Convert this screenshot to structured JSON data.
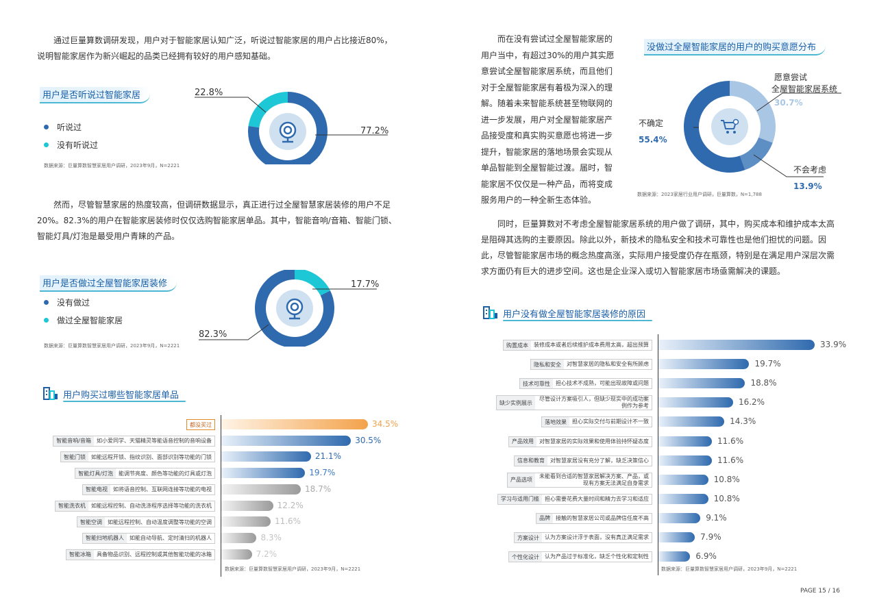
{
  "left": {
    "intro": [
      "通过巨量算数调研发现，用户对于智能家居认知广泛，听说过智能家居的用户占比接近80%，",
      "说明智能家居作为新兴崛起的品类已经拥有较好的用户感知基础。"
    ],
    "awareness": {
      "title": "用户是否听说过智能家居",
      "legend": [
        "听说过",
        "没有听说过"
      ],
      "values_text": [
        "77.2%",
        "22.8%"
      ],
      "source": "数据来源：巨量算数智慧家居用户调研，2023年9月，N=2221"
    },
    "para2": [
      "然而，尽管智慧家居的热度较高，但调研数据显示，真正进行过全屋智慧家居装修的用户不足",
      "20%。82.3%的用户在智能家居装修时仅仅选购智能家居单品。其中，智能音响/音箱、智能门锁、",
      "智能灯具/灯泡是最受用户青睐的产品。"
    ],
    "renovation": {
      "title": "用户是否做过全屋智能家居装修",
      "legend": [
        "没有做过",
        "做过全屋智能家居"
      ],
      "values_text": [
        "82.3%",
        "17.7%"
      ],
      "source": "数据来源：巨量算数智慧家居用户调研，2023年9月，N=2221"
    },
    "purchase": {
      "title": "用户购买过哪些智能家居单品",
      "source": "数据来源：巨量算数智慧家居用户调研，2023年9月，N=2221"
    }
  },
  "right": {
    "para1": [
      "而在没有尝试过全屋智能家居的",
      "用户当中，有超过30%的用户其实愿",
      "意尝试全屋智能家居系统，而且他们",
      "对于全屋智能家居有着极为深入的理",
      "解。随着未来智能系统甚至物联网的",
      "进一步发展，用户对全屋智能家居产",
      "品接受度和真实购买意愿也将进一步",
      "提升，智能家居的落地场景会实现从",
      "单品智能到全屋智能过渡。届时，智",
      "能家居不仅仅是一种产品，而将变成",
      "服务用户的一种全新生态体验。"
    ],
    "intent": {
      "title": "没做过全屋智能家居的用户的购买意愿分布",
      "labels": {
        "willing": [
          "愿意尝试",
          "全屋智能家居系统"
        ],
        "willing_val": "30.7%",
        "unsure": "不确定",
        "unsure_val": "55.4%",
        "no": "不会考虑",
        "no_val": "13.9%"
      },
      "source": "数据来源：2023家居行业用户调研，巨量算数，N=1,788"
    },
    "para2": [
      "同时，巨量算数对不考虑全屋智能家居系统的用户做了调研，其中，购买成本和维护成本太高",
      "是阻碍其选购的主要原因。除此以外，新技术的隐私安全和技术可靠性也是他们担忧的问题。因",
      "此，尽管智能家居市场的概念热度高涨，实际用户接受度仍存在瓶颈，特别是在满足用户深层次需",
      "求方面仍有巨大的进步空间。这也是企业深入或切入智能家居市场亟需解决的课题。"
    ],
    "reasons": {
      "title": "用户没有做全屋智能家居装修的原因",
      "source": "数据来源：巨量算数智慧家居用户调研，2023年9月，N=2221"
    }
  },
  "page_label": "PAGE 15 / 16",
  "chart_data": [
    {
      "type": "pie",
      "title": "用户是否听说过智能家居",
      "categories": [
        "听说过",
        "没有听说过"
      ],
      "values": [
        77.2,
        22.8
      ],
      "colors": [
        "#2f6aae",
        "#1ec7d6"
      ]
    },
    {
      "type": "pie",
      "title": "用户是否做过全屋智能家居装修",
      "categories": [
        "没有做过",
        "做过全屋智能家居"
      ],
      "values": [
        82.3,
        17.7
      ],
      "colors": [
        "#2f6aae",
        "#1ec7d6"
      ]
    },
    {
      "type": "bar",
      "orientation": "horizontal",
      "title": "用户购买过哪些智能家居单品",
      "categories": [
        "都没买过",
        "智能音响/音箱",
        "智能门锁",
        "智能灯具/灯泡",
        "智能电视",
        "智能洗衣机",
        "智能空调",
        "智能扫地机器人",
        "智能冰箱"
      ],
      "descriptions": [
        "",
        "如小爱同学、天猫精灵等能语音控制的音响设备",
        "如能远程开锁、指纹识别、面部识别等功能的门锁",
        "能调节亮度、颜色等功能的灯具或灯泡",
        "如将语音控制、互联网连接等功能的电视",
        "如能远程控制、自动洗涤程序选择等功能的洗衣机",
        "如能远程控制、自动温度调整等功能的空调",
        "如能自动导航、定时清扫的机器人",
        "具备物品识别、远程控制或其他智能功能的冰箱"
      ],
      "values": [
        34.5,
        30.5,
        21.1,
        19.7,
        18.7,
        12.2,
        11.6,
        8.3,
        7.2
      ],
      "value_labels": [
        "34.5%",
        "30.5%",
        "21.1%",
        "19.7%",
        "18.7%",
        "12.2%",
        "11.6%",
        "8.3%",
        "7.2%"
      ]
    },
    {
      "type": "bar",
      "orientation": "horizontal",
      "title": "用户没有做全屋智能家居装修的原因",
      "categories": [
        "购置成本",
        "隐私和安全",
        "技术可靠性",
        "缺少实例展示",
        "落地效果",
        "产品效用",
        "信息和教育",
        "产品选项",
        "学习与适用门槛",
        "品牌",
        "方案设计",
        "个性化设计"
      ],
      "descriptions": [
        "装修成本或者后续维护成本费用太高，超出预算",
        "对智慧家居的隐私和安全有所顾虑",
        "担心技术不成熟，可能出现故障或问题",
        "尽管设计方案吸引人，但缺少现实中的成功案例作为参考",
        "担心实际交付与前期设计不一致",
        "对智慧家居的实际效果和使用体验持怀疑态度",
        "对智慧家居没有充分了解，缺乏决策信心",
        "未能看到合适的智慧家居解决方案、产品，或现有方案无法满足自身需求",
        "担心需要花费大量时间和精力去学习和适应",
        "接触的智慧家居公司或品牌信任度不高",
        "认为方案设计浮于表面，没有真正满足需求",
        "认为产品过于标准化，缺乏个性化和定制性"
      ],
      "values": [
        33.9,
        19.7,
        18.8,
        16.2,
        14.3,
        11.6,
        11.6,
        10.8,
        10.8,
        9.1,
        7.9,
        6.9
      ],
      "value_labels": [
        "33.9%",
        "19.7%",
        "18.8%",
        "16.2%",
        "14.3%",
        "11.6%",
        "11.6%",
        "10.8%",
        "10.8%",
        "9.1%",
        "7.9%",
        "6.9%"
      ]
    },
    {
      "type": "pie",
      "title": "没做过全屋智能家居的用户的购买意愿分布",
      "categories": [
        "愿意尝试全屋智能家居系统",
        "不会考虑",
        "不确定"
      ],
      "values": [
        30.7,
        13.9,
        55.4
      ],
      "colors": [
        "#a9c6e4",
        "#5d8ec4",
        "#2f6aae"
      ]
    }
  ]
}
